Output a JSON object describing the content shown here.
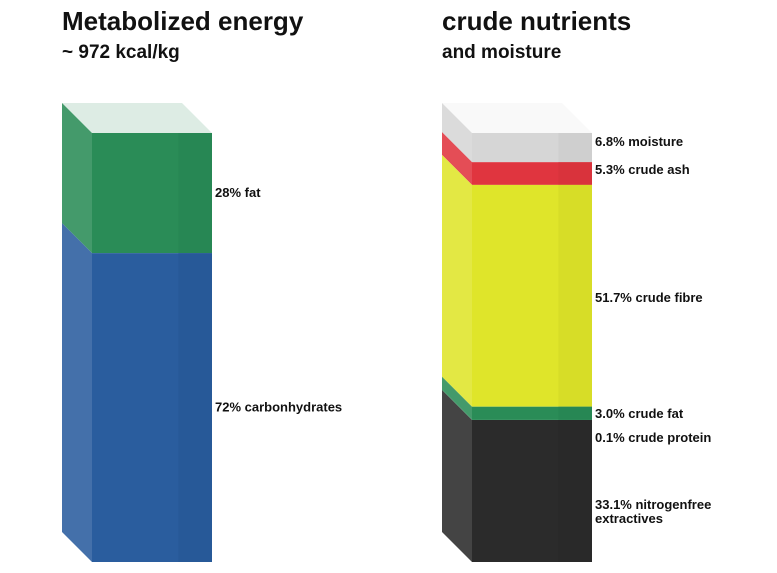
{
  "charts": [
    {
      "title": "Metabolized energy",
      "subtitle": "~ 972 kcal/kg"
    },
    {
      "title": "crude nutrients",
      "subtitle": "and moisture"
    }
  ],
  "chart_data": [
    {
      "type": "bar",
      "stacked": true,
      "title": "Metabolized energy",
      "subtitle": "~ 972 kcal/kg",
      "unit": "%",
      "segments": [
        {
          "name": "fat",
          "value": 28,
          "label": "28% fat",
          "color": "#2a8c57"
        },
        {
          "name": "carbonhydrates",
          "value": 72,
          "label": "72% carbonhydrates",
          "color": "#2a5d9e"
        }
      ]
    },
    {
      "type": "bar",
      "stacked": true,
      "title": "crude nutrients",
      "subtitle": "and moisture",
      "unit": "%",
      "segments": [
        {
          "name": "moisture",
          "value": 6.8,
          "label": "6.8% moisture",
          "color": "#d6d6d6"
        },
        {
          "name": "crude ash",
          "value": 5.3,
          "label": "5.3% crude ash",
          "color": "#e0353f"
        },
        {
          "name": "crude fibre",
          "value": 51.7,
          "label": "51.7% crude fibre",
          "color": "#dfe52a"
        },
        {
          "name": "crude fat",
          "value": 3.0,
          "label": "3.0% crude fat",
          "color": "#2a8c57"
        },
        {
          "name": "crude protein",
          "value": 0.1,
          "label": "0.1% crude protein",
          "color": "#2a8c57"
        },
        {
          "name": "nitrogenfree extractives",
          "value": 33.1,
          "label": [
            "33.1% nitrogenfree",
            "extractives"
          ],
          "color": "#2b2b2b"
        }
      ]
    }
  ]
}
